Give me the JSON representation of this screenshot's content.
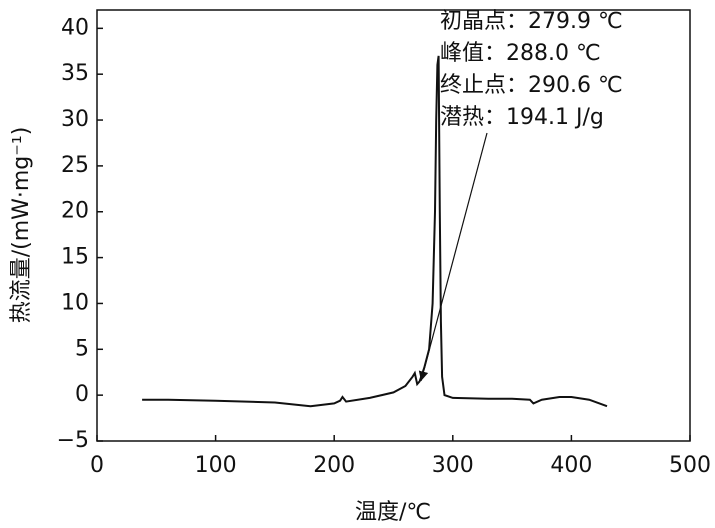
{
  "chart_data": {
    "type": "line",
    "x": [
      38,
      60,
      100,
      150,
      180,
      200,
      205,
      207,
      210,
      230,
      250,
      260,
      266,
      268,
      270,
      272,
      276,
      280,
      283,
      285,
      286,
      287,
      288,
      289,
      290,
      291,
      293,
      300,
      330,
      350,
      365,
      368,
      375,
      390,
      400,
      415,
      430
    ],
    "values": [
      -0.5,
      -0.5,
      -0.6,
      -0.8,
      -1.2,
      -0.9,
      -0.6,
      -0.2,
      -0.7,
      -0.3,
      0.3,
      1.0,
      2.0,
      2.4,
      1.2,
      1.5,
      3.0,
      5,
      10,
      20,
      30,
      36,
      37,
      20,
      8,
      2,
      0,
      -0.3,
      -0.4,
      -0.4,
      -0.5,
      -0.9,
      -0.5,
      -0.2,
      -0.2,
      -0.5,
      -1.2
    ],
    "color": "#111111",
    "xlabel": "温度/℃",
    "ylabel": "热流量/(mW·mg⁻¹)",
    "xlim": [
      0,
      500
    ],
    "xticks": [
      0,
      100,
      200,
      300,
      400,
      500
    ],
    "ylim": [
      -5,
      42
    ],
    "yticks": [
      {
        "value": -5,
        "label": "−5"
      },
      0,
      5,
      10,
      15,
      20,
      25,
      30,
      35,
      40
    ],
    "annotations": [
      "初晶点：279.9 ℃",
      "峰值：288.0 ℃",
      "终止点：290.6 ℃",
      "潜热：194.1 J/g"
    ]
  }
}
